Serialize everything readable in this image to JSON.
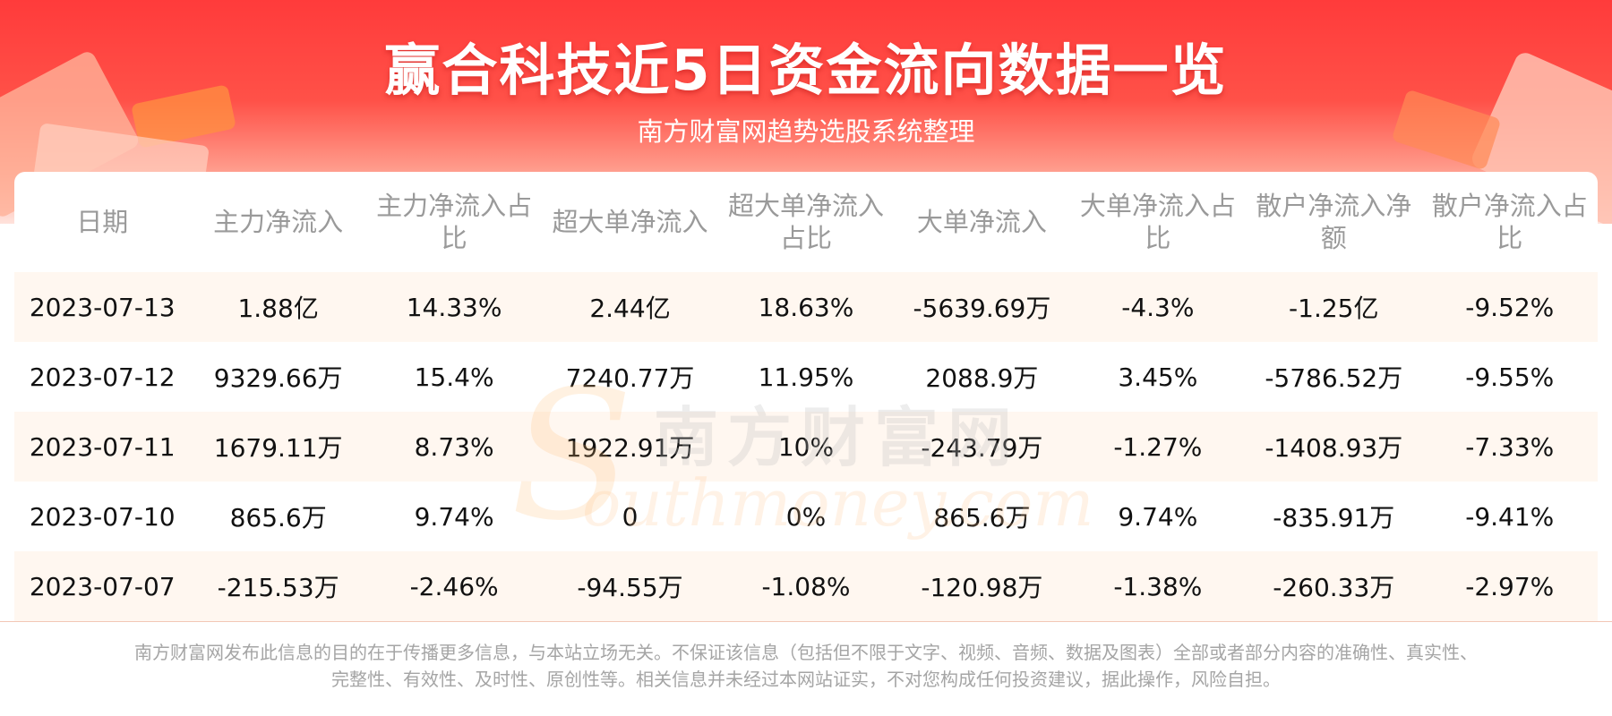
{
  "header": {
    "title": "赢合科技近5日资金流向数据一览",
    "subtitle": "南方财富网趋势选股系统整理"
  },
  "table": {
    "columns": [
      "日期",
      "主力净流入",
      "主力净流入占比",
      "超大单净流入",
      "超大单净流入占比",
      "大单净流入",
      "大单净流入占比",
      "散户净流入净额",
      "散户净流入占比"
    ],
    "rows": [
      [
        "2023-07-13",
        "1.88亿",
        "14.33%",
        "2.44亿",
        "18.63%",
        "-5639.69万",
        "-4.3%",
        "-1.25亿",
        "-9.52%"
      ],
      [
        "2023-07-12",
        "9329.66万",
        "15.4%",
        "7240.77万",
        "11.95%",
        "2088.9万",
        "3.45%",
        "-5786.52万",
        "-9.55%"
      ],
      [
        "2023-07-11",
        "1679.11万",
        "8.73%",
        "1922.91万",
        "10%",
        "-243.79万",
        "-1.27%",
        "-1408.93万",
        "-7.33%"
      ],
      [
        "2023-07-10",
        "865.6万",
        "9.74%",
        "0",
        "0%",
        "865.6万",
        "9.74%",
        "-835.91万",
        "-9.41%"
      ],
      [
        "2023-07-07",
        "-215.53万",
        "-2.46%",
        "-94.55万",
        "-1.08%",
        "-120.98万",
        "-1.38%",
        "-260.33万",
        "-2.97%"
      ]
    ]
  },
  "watermark": {
    "cn": "南方财富网",
    "en": "outhmoney.com",
    "s": "S"
  },
  "footer": {
    "line1": "南方财富网发布此信息的目的在于传播更多信息，与本站立场无关。不保证该信息（包括但不限于文字、视频、音频、数据及图表）全部或者部分内容的准确性、真实性、",
    "line2": "完整性、有效性、及时性、原创性等。相关信息并未经过本网站证实，不对您构成任何投资建议，据此操作，风险自担。"
  },
  "colors": {
    "banner_red": "#ff3b3b",
    "row_stripe": "#fff7f0",
    "header_text": "#9a9a9a"
  }
}
